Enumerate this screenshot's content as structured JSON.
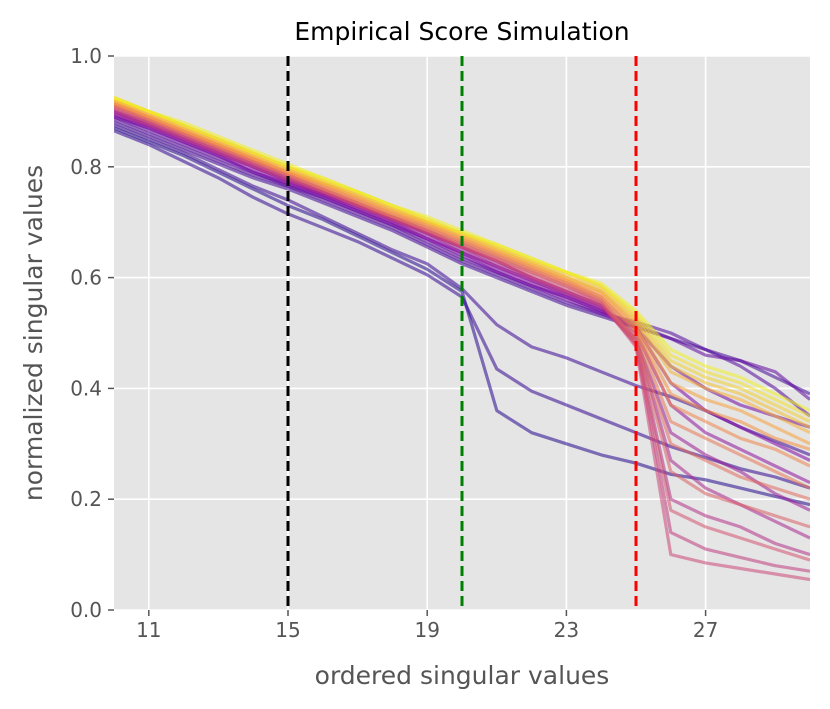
{
  "chart_data": {
    "type": "line",
    "title": "Empirical Score Simulation",
    "xlabel": "ordered singular values",
    "ylabel": "normalized singular values",
    "xlim": [
      10,
      30
    ],
    "ylim": [
      0.0,
      1.0
    ],
    "xticks": [
      11,
      15,
      19,
      23,
      27
    ],
    "xtick_labels": [
      "11",
      "15",
      "19",
      "23",
      "27"
    ],
    "yticks": [
      0.0,
      0.2,
      0.4,
      0.6,
      0.8,
      1.0
    ],
    "ytick_labels": [
      "0.0",
      "0.2",
      "0.4",
      "0.6",
      "0.8",
      "1.0"
    ],
    "grid": true,
    "background": "#e5e5e5",
    "colormap": "plasma",
    "vlines": [
      {
        "x": 15,
        "color": "#000000",
        "style": "dashed"
      },
      {
        "x": 20,
        "color": "#008000",
        "style": "dashed"
      },
      {
        "x": 25,
        "color": "#ff0000",
        "style": "dashed"
      }
    ],
    "series_note": "Many simulated curves; each curve is drawn from x = 10 to 30, colored by plasma colormap position t (0 = purple/blue, 1 = yellow).",
    "series": [
      {
        "t": 0.05,
        "x": [
          10,
          11,
          12,
          13,
          14,
          15,
          16,
          17,
          18,
          19,
          20,
          21,
          22,
          23,
          24,
          25,
          26,
          27,
          28,
          29,
          30
        ],
        "y": [
          0.87,
          0.845,
          0.82,
          0.79,
          0.76,
          0.73,
          0.705,
          0.675,
          0.645,
          0.615,
          0.575,
          0.36,
          0.32,
          0.3,
          0.28,
          0.265,
          0.245,
          0.235,
          0.22,
          0.205,
          0.19
        ]
      },
      {
        "t": 0.08,
        "x": [
          10,
          11,
          12,
          13,
          14,
          15,
          16,
          17,
          18,
          19,
          20,
          21,
          22,
          23,
          24,
          25,
          26,
          27,
          28,
          29,
          30
        ],
        "y": [
          0.865,
          0.84,
          0.81,
          0.78,
          0.745,
          0.715,
          0.69,
          0.665,
          0.635,
          0.605,
          0.565,
          0.435,
          0.395,
          0.37,
          0.345,
          0.32,
          0.295,
          0.275,
          0.255,
          0.24,
          0.22
        ]
      },
      {
        "t": 0.1,
        "x": [
          10,
          11,
          12,
          13,
          14,
          15,
          16,
          17,
          18,
          19,
          20,
          21,
          22,
          23,
          24,
          25,
          26,
          27,
          28,
          29,
          30
        ],
        "y": [
          0.875,
          0.85,
          0.825,
          0.795,
          0.765,
          0.74,
          0.71,
          0.68,
          0.65,
          0.625,
          0.58,
          0.515,
          0.475,
          0.455,
          0.43,
          0.405,
          0.385,
          0.36,
          0.33,
          0.305,
          0.28
        ]
      },
      {
        "t": 0.12,
        "x": [
          10,
          11,
          12,
          13,
          14,
          15,
          16,
          17,
          18,
          19,
          20,
          21,
          22,
          23,
          24,
          25,
          26,
          27,
          28,
          29,
          30
        ],
        "y": [
          0.88,
          0.855,
          0.83,
          0.805,
          0.78,
          0.76,
          0.735,
          0.71,
          0.685,
          0.655,
          0.625,
          0.6,
          0.575,
          0.55,
          0.53,
          0.51,
          0.49,
          0.47,
          0.45,
          0.42,
          0.39
        ]
      },
      {
        "t": 0.15,
        "x": [
          10,
          11,
          12,
          13,
          14,
          15,
          16,
          17,
          18,
          19,
          20,
          21,
          22,
          23,
          24,
          25,
          26,
          27,
          28,
          29,
          30
        ],
        "y": [
          0.885,
          0.86,
          0.835,
          0.81,
          0.785,
          0.765,
          0.74,
          0.715,
          0.69,
          0.66,
          0.63,
          0.605,
          0.58,
          0.555,
          0.535,
          0.52,
          0.5,
          0.47,
          0.44,
          0.4,
          0.35
        ]
      },
      {
        "t": 0.18,
        "x": [
          10,
          11,
          12,
          13,
          14,
          15,
          16,
          17,
          18,
          19,
          20,
          21,
          22,
          23,
          24,
          25,
          26,
          27,
          28,
          29,
          30
        ],
        "y": [
          0.89,
          0.865,
          0.84,
          0.815,
          0.79,
          0.765,
          0.745,
          0.72,
          0.695,
          0.665,
          0.635,
          0.61,
          0.585,
          0.565,
          0.54,
          0.515,
          0.49,
          0.46,
          0.45,
          0.43,
          0.38
        ]
      },
      {
        "t": 0.22,
        "x": [
          10,
          11,
          12,
          13,
          14,
          15,
          16,
          17,
          18,
          19,
          20,
          21,
          22,
          23,
          24,
          25,
          26,
          27,
          28,
          29,
          30
        ],
        "y": [
          0.89,
          0.87,
          0.845,
          0.82,
          0.79,
          0.77,
          0.745,
          0.72,
          0.695,
          0.67,
          0.64,
          0.61,
          0.585,
          0.56,
          0.535,
          0.51,
          0.44,
          0.4,
          0.37,
          0.35,
          0.33
        ]
      },
      {
        "t": 0.26,
        "x": [
          10,
          11,
          12,
          13,
          14,
          15,
          16,
          17,
          18,
          19,
          20,
          21,
          22,
          23,
          24,
          25,
          26,
          27,
          28,
          29,
          30
        ],
        "y": [
          0.895,
          0.87,
          0.845,
          0.82,
          0.795,
          0.77,
          0.75,
          0.725,
          0.7,
          0.67,
          0.645,
          0.615,
          0.59,
          0.565,
          0.54,
          0.51,
          0.41,
          0.36,
          0.33,
          0.3,
          0.27
        ]
      },
      {
        "t": 0.3,
        "x": [
          10,
          11,
          12,
          13,
          14,
          15,
          16,
          17,
          18,
          19,
          20,
          21,
          22,
          23,
          24,
          25,
          26,
          27,
          28,
          29,
          30
        ],
        "y": [
          0.9,
          0.875,
          0.85,
          0.825,
          0.8,
          0.775,
          0.75,
          0.725,
          0.7,
          0.675,
          0.645,
          0.62,
          0.595,
          0.57,
          0.545,
          0.5,
          0.37,
          0.32,
          0.29,
          0.26,
          0.23
        ]
      },
      {
        "t": 0.34,
        "x": [
          10,
          11,
          12,
          13,
          14,
          15,
          16,
          17,
          18,
          19,
          20,
          21,
          22,
          23,
          24,
          25,
          26,
          27,
          28,
          29,
          30
        ],
        "y": [
          0.895,
          0.875,
          0.85,
          0.825,
          0.8,
          0.775,
          0.75,
          0.73,
          0.705,
          0.68,
          0.65,
          0.62,
          0.595,
          0.57,
          0.545,
          0.49,
          0.32,
          0.28,
          0.25,
          0.21,
          0.18
        ]
      },
      {
        "t": 0.38,
        "x": [
          10,
          11,
          12,
          13,
          14,
          15,
          16,
          17,
          18,
          19,
          20,
          21,
          22,
          23,
          24,
          25,
          26,
          27,
          28,
          29,
          30
        ],
        "y": [
          0.9,
          0.88,
          0.855,
          0.83,
          0.805,
          0.78,
          0.755,
          0.73,
          0.705,
          0.68,
          0.655,
          0.625,
          0.6,
          0.575,
          0.55,
          0.49,
          0.27,
          0.22,
          0.19,
          0.16,
          0.13
        ]
      },
      {
        "t": 0.42,
        "x": [
          10,
          11,
          12,
          13,
          14,
          15,
          16,
          17,
          18,
          19,
          20,
          21,
          22,
          23,
          24,
          25,
          26,
          27,
          28,
          29,
          30
        ],
        "y": [
          0.9,
          0.875,
          0.85,
          0.825,
          0.8,
          0.775,
          0.755,
          0.73,
          0.705,
          0.68,
          0.655,
          0.63,
          0.6,
          0.575,
          0.55,
          0.485,
          0.2,
          0.17,
          0.15,
          0.12,
          0.1
        ]
      },
      {
        "t": 0.46,
        "x": [
          10,
          11,
          12,
          13,
          14,
          15,
          16,
          17,
          18,
          19,
          20,
          21,
          22,
          23,
          24,
          25,
          26,
          27,
          28,
          29,
          30
        ],
        "y": [
          0.905,
          0.88,
          0.855,
          0.83,
          0.805,
          0.78,
          0.755,
          0.73,
          0.705,
          0.68,
          0.655,
          0.63,
          0.6,
          0.575,
          0.55,
          0.48,
          0.14,
          0.11,
          0.095,
          0.08,
          0.07
        ]
      },
      {
        "t": 0.5,
        "x": [
          10,
          11,
          12,
          13,
          14,
          15,
          16,
          17,
          18,
          19,
          20,
          21,
          22,
          23,
          24,
          25,
          26,
          27,
          28,
          29,
          30
        ],
        "y": [
          0.905,
          0.88,
          0.855,
          0.83,
          0.805,
          0.78,
          0.755,
          0.73,
          0.71,
          0.685,
          0.655,
          0.63,
          0.605,
          0.58,
          0.555,
          0.475,
          0.1,
          0.085,
          0.075,
          0.065,
          0.055
        ]
      },
      {
        "t": 0.54,
        "x": [
          10,
          11,
          12,
          13,
          14,
          15,
          16,
          17,
          18,
          19,
          20,
          21,
          22,
          23,
          24,
          25,
          26,
          27,
          28,
          29,
          30
        ],
        "y": [
          0.91,
          0.885,
          0.86,
          0.835,
          0.81,
          0.785,
          0.76,
          0.735,
          0.71,
          0.685,
          0.66,
          0.635,
          0.61,
          0.585,
          0.555,
          0.48,
          0.18,
          0.15,
          0.13,
          0.11,
          0.09
        ]
      },
      {
        "t": 0.58,
        "x": [
          10,
          11,
          12,
          13,
          14,
          15,
          16,
          17,
          18,
          19,
          20,
          21,
          22,
          23,
          24,
          25,
          26,
          27,
          28,
          29,
          30
        ],
        "y": [
          0.91,
          0.885,
          0.86,
          0.835,
          0.81,
          0.785,
          0.76,
          0.735,
          0.71,
          0.685,
          0.66,
          0.635,
          0.61,
          0.585,
          0.56,
          0.485,
          0.25,
          0.21,
          0.19,
          0.17,
          0.15
        ]
      },
      {
        "t": 0.62,
        "x": [
          10,
          11,
          12,
          13,
          14,
          15,
          16,
          17,
          18,
          19,
          20,
          21,
          22,
          23,
          24,
          25,
          26,
          27,
          28,
          29,
          30
        ],
        "y": [
          0.91,
          0.885,
          0.86,
          0.835,
          0.81,
          0.785,
          0.76,
          0.735,
          0.71,
          0.69,
          0.665,
          0.64,
          0.615,
          0.59,
          0.56,
          0.49,
          0.3,
          0.27,
          0.24,
          0.22,
          0.2
        ]
      },
      {
        "t": 0.66,
        "x": [
          10,
          11,
          12,
          13,
          14,
          15,
          16,
          17,
          18,
          19,
          20,
          21,
          22,
          23,
          24,
          25,
          26,
          27,
          28,
          29,
          30
        ],
        "y": [
          0.915,
          0.89,
          0.865,
          0.84,
          0.815,
          0.79,
          0.765,
          0.74,
          0.715,
          0.69,
          0.665,
          0.64,
          0.615,
          0.59,
          0.565,
          0.5,
          0.34,
          0.31,
          0.28,
          0.25,
          0.22
        ]
      },
      {
        "t": 0.7,
        "x": [
          10,
          11,
          12,
          13,
          14,
          15,
          16,
          17,
          18,
          19,
          20,
          21,
          22,
          23,
          24,
          25,
          26,
          27,
          28,
          29,
          30
        ],
        "y": [
          0.915,
          0.89,
          0.865,
          0.84,
          0.815,
          0.79,
          0.765,
          0.74,
          0.715,
          0.695,
          0.67,
          0.645,
          0.62,
          0.595,
          0.565,
          0.505,
          0.37,
          0.34,
          0.31,
          0.29,
          0.26
        ]
      },
      {
        "t": 0.74,
        "x": [
          10,
          11,
          12,
          13,
          14,
          15,
          16,
          17,
          18,
          19,
          20,
          21,
          22,
          23,
          24,
          25,
          26,
          27,
          28,
          29,
          30
        ],
        "y": [
          0.915,
          0.89,
          0.865,
          0.84,
          0.815,
          0.79,
          0.77,
          0.745,
          0.72,
          0.695,
          0.67,
          0.645,
          0.62,
          0.595,
          0.57,
          0.51,
          0.39,
          0.36,
          0.34,
          0.31,
          0.29
        ]
      },
      {
        "t": 0.78,
        "x": [
          10,
          11,
          12,
          13,
          14,
          15,
          16,
          17,
          18,
          19,
          20,
          21,
          22,
          23,
          24,
          25,
          26,
          27,
          28,
          29,
          30
        ],
        "y": [
          0.92,
          0.895,
          0.87,
          0.845,
          0.82,
          0.795,
          0.77,
          0.745,
          0.72,
          0.7,
          0.675,
          0.65,
          0.625,
          0.6,
          0.575,
          0.515,
          0.41,
          0.38,
          0.36,
          0.33,
          0.3
        ]
      },
      {
        "t": 0.82,
        "x": [
          10,
          11,
          12,
          13,
          14,
          15,
          16,
          17,
          18,
          19,
          20,
          21,
          22,
          23,
          24,
          25,
          26,
          27,
          28,
          29,
          30
        ],
        "y": [
          0.92,
          0.895,
          0.87,
          0.845,
          0.82,
          0.795,
          0.77,
          0.75,
          0.725,
          0.7,
          0.675,
          0.65,
          0.625,
          0.6,
          0.575,
          0.52,
          0.43,
          0.4,
          0.38,
          0.35,
          0.32
        ]
      },
      {
        "t": 0.86,
        "x": [
          10,
          11,
          12,
          13,
          14,
          15,
          16,
          17,
          18,
          19,
          20,
          21,
          22,
          23,
          24,
          25,
          26,
          27,
          28,
          29,
          30
        ],
        "y": [
          0.92,
          0.9,
          0.875,
          0.85,
          0.825,
          0.8,
          0.775,
          0.75,
          0.725,
          0.7,
          0.68,
          0.655,
          0.63,
          0.605,
          0.58,
          0.525,
          0.44,
          0.41,
          0.39,
          0.36,
          0.33
        ]
      },
      {
        "t": 0.9,
        "x": [
          10,
          11,
          12,
          13,
          14,
          15,
          16,
          17,
          18,
          19,
          20,
          21,
          22,
          23,
          24,
          25,
          26,
          27,
          28,
          29,
          30
        ],
        "y": [
          0.925,
          0.9,
          0.875,
          0.85,
          0.825,
          0.8,
          0.775,
          0.755,
          0.73,
          0.705,
          0.68,
          0.655,
          0.63,
          0.61,
          0.585,
          0.53,
          0.45,
          0.42,
          0.4,
          0.37,
          0.34
        ]
      },
      {
        "t": 0.94,
        "x": [
          10,
          11,
          12,
          13,
          14,
          15,
          16,
          17,
          18,
          19,
          20,
          21,
          22,
          23,
          24,
          25,
          26,
          27,
          28,
          29,
          30
        ],
        "y": [
          0.925,
          0.9,
          0.875,
          0.85,
          0.825,
          0.8,
          0.78,
          0.755,
          0.73,
          0.705,
          0.68,
          0.66,
          0.635,
          0.61,
          0.585,
          0.535,
          0.46,
          0.43,
          0.41,
          0.38,
          0.35
        ]
      },
      {
        "t": 0.98,
        "x": [
          10,
          11,
          12,
          13,
          14,
          15,
          16,
          17,
          18,
          19,
          20,
          21,
          22,
          23,
          24,
          25,
          26,
          27,
          28,
          29,
          30
        ],
        "y": [
          0.925,
          0.9,
          0.88,
          0.855,
          0.83,
          0.805,
          0.78,
          0.755,
          0.73,
          0.71,
          0.685,
          0.66,
          0.635,
          0.61,
          0.59,
          0.54,
          0.47,
          0.44,
          0.42,
          0.39,
          0.36
        ]
      }
    ]
  }
}
